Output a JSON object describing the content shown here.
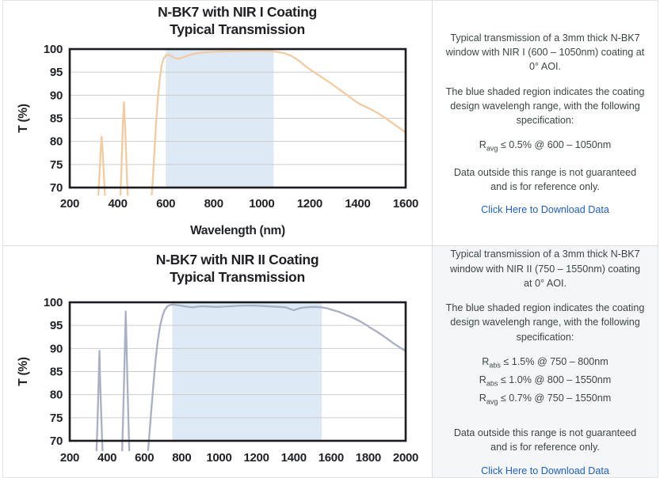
{
  "chart_data": [
    {
      "type": "line",
      "title": "N-BK7 with NIR I Coating",
      "subtitle": "Typical Transmission",
      "xlabel": "Wavelength (nm)",
      "ylabel": "T (%)",
      "xlim": [
        200,
        1600
      ],
      "ylim": [
        70,
        100
      ],
      "x_ticks": [
        200,
        400,
        600,
        800,
        1000,
        1200,
        1400,
        1600
      ],
      "y_ticks": [
        70,
        75,
        80,
        85,
        90,
        95,
        100
      ],
      "grid": true,
      "shaded_region": {
        "from": 600,
        "to": 1050,
        "meaning": "coating design wavelength range",
        "color": "#dde9f4"
      },
      "line_color": "#f2cba1",
      "series": [
        {
          "name": "NIR I coated N-BK7 typical transmission (%)",
          "points": [
            [
              315,
              64
            ],
            [
              323,
              72
            ],
            [
              330,
              79
            ],
            [
              333,
              81
            ],
            [
              336,
              79
            ],
            [
              343,
              72
            ],
            [
              351,
              64
            ],
            [
              408,
              64
            ],
            [
              415,
              73
            ],
            [
              421,
              83
            ],
            [
              426,
              88.5
            ],
            [
              431,
              83
            ],
            [
              438,
              73
            ],
            [
              445,
              64
            ],
            [
              536,
              64
            ],
            [
              544,
              70
            ],
            [
              551,
              76
            ],
            [
              559,
              83
            ],
            [
              567,
              89
            ],
            [
              575,
              93.5
            ],
            [
              583,
              96.4
            ],
            [
              591,
              97.9
            ],
            [
              600,
              98.6
            ],
            [
              610,
              98.8
            ],
            [
              622,
              98.5
            ],
            [
              637,
              98.1
            ],
            [
              652,
              97.9
            ],
            [
              668,
              98.1
            ],
            [
              688,
              98.5
            ],
            [
              712,
              98.9
            ],
            [
              740,
              99.2
            ],
            [
              775,
              99.35
            ],
            [
              815,
              99.45
            ],
            [
              860,
              99.5
            ],
            [
              905,
              99.55
            ],
            [
              950,
              99.6
            ],
            [
              995,
              99.6
            ],
            [
              1035,
              99.55
            ],
            [
              1065,
              99.4
            ],
            [
              1095,
              99.1
            ],
            [
              1125,
              98.5
            ],
            [
              1155,
              97.5
            ],
            [
              1185,
              96.2
            ],
            [
              1215,
              95.1
            ],
            [
              1250,
              93.9
            ],
            [
              1285,
              92.7
            ],
            [
              1320,
              91.4
            ],
            [
              1355,
              90.1
            ],
            [
              1385,
              88.9
            ],
            [
              1405,
              88.2
            ],
            [
              1420,
              87.8
            ],
            [
              1450,
              87.1
            ],
            [
              1485,
              86.1
            ],
            [
              1520,
              84.9
            ],
            [
              1555,
              83.6
            ],
            [
              1580,
              82.7
            ],
            [
              1600,
              81.9
            ]
          ]
        }
      ]
    },
    {
      "type": "line",
      "title": "N-BK7 with NIR II Coating",
      "subtitle": "Typical Transmission",
      "xlabel": "",
      "ylabel": "T (%)",
      "xlim": [
        200,
        2000
      ],
      "ylim": [
        70,
        100
      ],
      "x_ticks": [
        200,
        400,
        600,
        800,
        1000,
        1200,
        1400,
        1600,
        1800,
        2000
      ],
      "y_ticks": [
        70,
        75,
        80,
        85,
        90,
        95,
        100
      ],
      "grid": true,
      "shaded_region": {
        "from": 750,
        "to": 1550,
        "meaning": "coating design wavelength range",
        "color": "#dde9f4"
      },
      "line_color": "#aab0c4",
      "series": [
        {
          "name": "NIR II coated N-BK7 typical transmission (%)",
          "points": [
            [
              340,
              64
            ],
            [
              348,
              73
            ],
            [
              355,
              83
            ],
            [
              359,
              89.5
            ],
            [
              363,
              83
            ],
            [
              371,
              73
            ],
            [
              379,
              64
            ],
            [
              478,
              64
            ],
            [
              486,
              75
            ],
            [
              494,
              88
            ],
            [
              500,
              98
            ],
            [
              506,
              88
            ],
            [
              514,
              75
            ],
            [
              522,
              64
            ],
            [
              612,
              64
            ],
            [
              624,
              70
            ],
            [
              636,
              76
            ],
            [
              648,
              82
            ],
            [
              660,
              87.5
            ],
            [
              672,
              91.8
            ],
            [
              684,
              94.8
            ],
            [
              696,
              96.9
            ],
            [
              708,
              98.3
            ],
            [
              722,
              99.1
            ],
            [
              738,
              99.45
            ],
            [
              755,
              99.5
            ],
            [
              775,
              99.4
            ],
            [
              800,
              99.25
            ],
            [
              828,
              99.05
            ],
            [
              855,
              98.9
            ],
            [
              882,
              99.05
            ],
            [
              910,
              99.15
            ],
            [
              945,
              99.1
            ],
            [
              980,
              99.0
            ],
            [
              1020,
              99.05
            ],
            [
              1060,
              99.15
            ],
            [
              1105,
              99.25
            ],
            [
              1150,
              99.3
            ],
            [
              1195,
              99.3
            ],
            [
              1240,
              99.2
            ],
            [
              1285,
              99.1
            ],
            [
              1325,
              99.0
            ],
            [
              1360,
              98.9
            ],
            [
              1385,
              98.5
            ],
            [
              1400,
              98.3
            ],
            [
              1415,
              98.5
            ],
            [
              1440,
              98.8
            ],
            [
              1475,
              98.95
            ],
            [
              1515,
              99.0
            ],
            [
              1550,
              98.9
            ],
            [
              1580,
              98.7
            ],
            [
              1610,
              98.3
            ],
            [
              1645,
              97.9
            ],
            [
              1680,
              97.3
            ],
            [
              1715,
              96.7
            ],
            [
              1750,
              96.0
            ],
            [
              1780,
              95.3
            ],
            [
              1797,
              94.9
            ],
            [
              1805,
              94.6
            ],
            [
              1820,
              94.3
            ],
            [
              1855,
              93.4
            ],
            [
              1895,
              92.3
            ],
            [
              1935,
              91.1
            ],
            [
              1970,
              90.2
            ],
            [
              2000,
              89.4
            ]
          ]
        }
      ]
    }
  ],
  "rows": [
    {
      "panel": {
        "para1": "Typical transmission of a 3mm thick N-BK7 window with NIR I (600 – 1050nm) coating at 0° AOI.",
        "para2": "The blue shaded region indicates the coating design wavelengh range, with the following specification:",
        "specs": [
          {
            "sym": "R",
            "sub": "avg",
            "rest": " ≤ 0.5% @ 600 – 1050nm"
          }
        ],
        "para3": "Data outside this range is not guaranteed and is for reference only.",
        "link": "Click Here to Download Data"
      }
    },
    {
      "panel": {
        "para1": "Typical transmission of a 3mm thick N-BK7 window with NIR II (750 – 1550nm) coating at 0° AOI.",
        "para2": "The blue shaded region indicates the coating design wavelengh range, with the following specification:",
        "specs": [
          {
            "sym": "R",
            "sub": "abs",
            "rest": " ≤ 1.5% @ 750 – 800nm"
          },
          {
            "sym": "R",
            "sub": "abs",
            "rest": " ≤ 1.0% @ 800 – 1550nm"
          },
          {
            "sym": "R",
            "sub": "avg",
            "rest": " ≤ 0.7% @ 750 – 1550nm"
          }
        ],
        "para3": "Data outside this range is not guaranteed and is for reference only.",
        "link": "Click Here to Download Data"
      }
    }
  ],
  "colors": {
    "link_blue": "#1c60c6",
    "plot_border": "#1c1c20",
    "gridline": "#cccccc",
    "region_blue": "#dde9f4",
    "nir1_line": "#f2cba1",
    "nir2_line": "#aab0c4"
  }
}
